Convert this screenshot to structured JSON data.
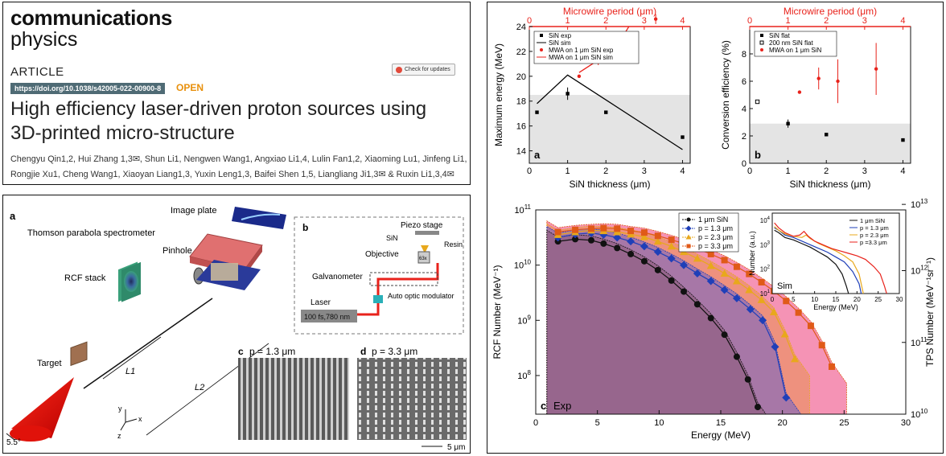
{
  "journal": {
    "name_line1": "communications",
    "name_line2": "physics"
  },
  "article_type": "ARTICLE",
  "doi": "https://doi.org/10.1038/s42005-022-00900-8",
  "open_label": "OPEN",
  "check_updates": "Check for updates",
  "title": "High efficiency laser-driven proton sources using 3D-printed micro-structure",
  "authors_line1": "Chengyu Qin1,2, Hui Zhang 1,3✉, Shun Li1, Nengwen Wang1, Angxiao Li1,4, Lulin Fan1,2, Xiaoming Lu1, Jinfeng Li1,",
  "authors_line2": "Rongjie Xu1, Cheng Wang1, Xiaoyan Liang1,3, Yuxin Leng1,3, Baifei Shen 1,5, Liangliang Ji1,3✉ & Ruxin Li1,3,4✉",
  "setup_figure": {
    "panel_a": "a",
    "panel_b": "b",
    "panel_c": "c",
    "panel_d": "d",
    "image_plate": "Image plate",
    "spectrometer": "Thomson parabola spectrometer",
    "pinhole": "Pinhole",
    "rcf_stack": "RCF stack",
    "target": "Target",
    "laser": "Laser",
    "l1": "L1",
    "l2": "L2",
    "angle": "5.5°",
    "axis_x": "x",
    "axis_y": "y",
    "axis_z": "z",
    "piezo_stage": "Piezo stage",
    "sin": "SiN",
    "resin": "Resin",
    "objective": "Objective",
    "mag": "63x",
    "galvanometer": "Galvanometer",
    "laser_box_title": "Laser",
    "laser_spec": "100 fs,780 nm",
    "aom": "Auto optic modulator",
    "sem_c": "p = 1.3 μm",
    "sem_d": "p = 3.3 μm",
    "scale": "5 μm"
  },
  "chart_data": [
    {
      "type": "scatter",
      "panel": "a",
      "xlabel": "SiN thickness (μm)",
      "ylabel": "Maximum energy (MeV)",
      "top_xlabel": "Microwire period (μm)",
      "xlim": [
        0,
        4.2
      ],
      "ylim": [
        13,
        24
      ],
      "xticks": [
        0,
        1,
        2,
        3,
        4
      ],
      "yticks": [
        14,
        16,
        18,
        20,
        22,
        24
      ],
      "top_xticks": [
        0,
        1,
        2,
        3,
        4
      ],
      "shaded_below": 18.5,
      "series": [
        {
          "name": "SiN exp",
          "kind": "points",
          "marker": "square",
          "color": "#000000",
          "x": [
            0.2,
            1.0,
            2.0,
            4.0
          ],
          "y": [
            17.1,
            18.6,
            17.1,
            15.1
          ],
          "err": [
            0,
            0.5,
            0,
            0
          ]
        },
        {
          "name": "SiN sim",
          "kind": "line",
          "color": "#000000",
          "x": [
            0.2,
            1.0,
            4.0
          ],
          "y": [
            17.8,
            20.1,
            14.1
          ]
        },
        {
          "name": "MWA on 1 μm SiN exp",
          "kind": "points",
          "marker": "circle",
          "color": "#e8221b",
          "x": [
            1.3,
            1.8,
            2.3,
            3.3
          ],
          "y": [
            20.0,
            21.6,
            22.2,
            24.6
          ],
          "err": [
            0,
            0.7,
            0.4,
            0.4
          ]
        },
        {
          "name": "MWA on 1 μm SiN sim",
          "kind": "line",
          "color": "#e8221b",
          "x": [
            1.3,
            1.8,
            2.3,
            3.3
          ],
          "y": [
            20.3,
            21.3,
            22.5,
            27.5
          ]
        }
      ]
    },
    {
      "type": "scatter",
      "panel": "b",
      "xlabel": "SiN thickness (μm)",
      "ylabel": "Conversion efficiency (%)",
      "top_xlabel": "Microwire period (μm)",
      "xlim": [
        0,
        4.2
      ],
      "ylim": [
        0,
        10
      ],
      "xticks": [
        0,
        1,
        2,
        3,
        4
      ],
      "yticks": [
        0,
        2,
        4,
        6,
        8
      ],
      "top_xticks": [
        0,
        1,
        2,
        3,
        4
      ],
      "shaded_below": 2.9,
      "series": [
        {
          "name": "SiN flat",
          "kind": "points",
          "marker": "square",
          "color": "#000000",
          "x": [
            1.0,
            2.0,
            4.0
          ],
          "y": [
            2.9,
            2.1,
            1.7
          ],
          "err": [
            0.3,
            0,
            0
          ]
        },
        {
          "name": "200 nm SiN flat",
          "kind": "points",
          "marker": "open-square",
          "color": "#000000",
          "x": [
            0.2
          ],
          "y": [
            4.5
          ],
          "err": [
            0
          ]
        },
        {
          "name": "MWA on 1 μm SiN",
          "kind": "points",
          "marker": "circle",
          "color": "#e8221b",
          "x": [
            1.3,
            1.8,
            2.3,
            3.3
          ],
          "y": [
            5.2,
            6.2,
            6.0,
            6.9
          ],
          "err": [
            0,
            0.8,
            1.6,
            1.9
          ]
        }
      ]
    },
    {
      "type": "line",
      "panel": "c",
      "annotation": "Exp",
      "xlabel": "Energy (MeV)",
      "ylabel": "RCF Number (MeV⁻¹)",
      "right_ylabel": "TPS Number (MeV⁻¹sr⁻¹)",
      "xlim": [
        0,
        30
      ],
      "ylog_range": [
        7.3,
        11
      ],
      "xticks": [
        0,
        5,
        10,
        15,
        20,
        25,
        30
      ],
      "left_ytick_labels": [
        "10^8",
        "10^9",
        "10^10",
        "10^11"
      ],
      "left_ytick_log": [
        8,
        9,
        10,
        11
      ],
      "right_ytick_labels": [
        "10^10",
        "10^11",
        "10^12",
        "10^13"
      ],
      "right_ytick_log": [
        7.3,
        8.6,
        9.9,
        11.1
      ],
      "series": [
        {
          "name": "1 μm SiN",
          "marker": "circle",
          "color": "#111111",
          "fill": "#8a5a78",
          "x": [
            1.8,
            3.2,
            4.5,
            5.5,
            6.6,
            7.7,
            8.8,
            9.9,
            11,
            12,
            13.1,
            14.2,
            15.3,
            16.3,
            17.2,
            18.0
          ],
          "y": [
            10.43,
            10.47,
            10.45,
            10.39,
            10.31,
            10.2,
            10.07,
            9.91,
            9.72,
            9.52,
            9.29,
            9.04,
            8.74,
            8.34,
            7.93,
            7.43
          ]
        },
        {
          "name": "p = 1.3 μm",
          "marker": "diamond",
          "color": "#1f3fb8",
          "fill": "#6e63c9",
          "x": [
            1.8,
            3.2,
            4.5,
            5.5,
            6.6,
            7.7,
            8.8,
            9.9,
            11,
            12,
            13.1,
            14.2,
            15.3,
            16.3,
            17.4,
            18.4,
            19.4,
            20.3
          ],
          "y": [
            10.5,
            10.56,
            10.58,
            10.55,
            10.5,
            10.43,
            10.34,
            10.24,
            10.12,
            10.0,
            9.85,
            9.71,
            9.55,
            9.4,
            9.2,
            9.0,
            8.52,
            7.6
          ]
        },
        {
          "name": "p = 2.3 μm",
          "marker": "triangle",
          "color": "#e8a81c",
          "fill": "#e89050",
          "x": [
            1.8,
            3.2,
            4.5,
            5.5,
            6.6,
            7.7,
            8.8,
            9.9,
            11,
            12,
            13.1,
            14.2,
            15.3,
            16.3,
            17.3,
            18.3,
            19.3,
            20.2,
            21
          ],
          "y": [
            10.55,
            10.6,
            10.63,
            10.62,
            10.6,
            10.56,
            10.51,
            10.43,
            10.34,
            10.24,
            10.12,
            9.99,
            9.85,
            9.71,
            9.55,
            9.37,
            9.15,
            8.75,
            8.3
          ]
        },
        {
          "name": "p = 3.3 μm",
          "marker": "square",
          "color": "#e05a18",
          "fill": "#ec3a78",
          "x": [
            1.8,
            3.2,
            4.5,
            5.5,
            6.6,
            7.7,
            8.8,
            9.9,
            11,
            12,
            13.1,
            14.2,
            15.3,
            16.3,
            17.3,
            18.3,
            19.3,
            20.3,
            21.3,
            22.3,
            23.2,
            24
          ],
          "y": [
            10.6,
            10.64,
            10.66,
            10.67,
            10.66,
            10.62,
            10.59,
            10.53,
            10.46,
            10.39,
            10.3,
            10.2,
            10.09,
            9.97,
            9.84,
            9.69,
            9.53,
            9.35,
            9.14,
            8.9,
            8.55,
            8.16
          ]
        }
      ]
    },
    {
      "type": "line",
      "panel": "c-inset",
      "annotation": "Sim",
      "xlabel": "Energy (MeV)",
      "ylabel": "Number (a.u.)",
      "xlim": [
        0,
        30
      ],
      "ylog_range": [
        1,
        4.3
      ],
      "xticks": [
        0,
        5,
        10,
        15,
        20,
        25,
        30
      ],
      "ytick_labels": [
        "10^1",
        "10^2",
        "10^3",
        "10^4"
      ],
      "ytick_log": [
        1,
        2,
        3,
        4
      ],
      "series": [
        {
          "name": "1 μm SiN",
          "color": "#111111",
          "x": [
            0.5,
            1.5,
            3,
            5,
            7,
            9,
            11,
            13,
            15,
            16.5,
            17.5,
            18
          ],
          "y": [
            3.6,
            3.5,
            3.3,
            3.2,
            3.05,
            2.9,
            2.7,
            2.5,
            2.2,
            1.8,
            1.3,
            1.0
          ]
        },
        {
          "name": "p = 1.3 μm",
          "color": "#1f3fb8",
          "x": [
            0.5,
            1.5,
            3,
            5,
            7,
            9,
            11,
            13,
            15,
            17,
            19,
            20.5,
            21
          ],
          "y": [
            3.7,
            3.6,
            3.4,
            3.3,
            3.15,
            3.0,
            2.85,
            2.7,
            2.5,
            2.3,
            1.9,
            1.4,
            1.0
          ]
        },
        {
          "name": "p = 2.3 μm",
          "color": "#e8a81c",
          "x": [
            0.5,
            1.5,
            3,
            5,
            7,
            8,
            9,
            11,
            13,
            15,
            17,
            19,
            20.5,
            21.5
          ],
          "y": [
            3.75,
            3.6,
            3.45,
            3.35,
            3.3,
            3.4,
            3.25,
            3.05,
            2.9,
            2.75,
            2.55,
            2.3,
            1.8,
            1.0
          ]
        },
        {
          "name": "p =3.3 μm",
          "color": "#e8221b",
          "x": [
            0.5,
            1.5,
            3,
            5,
            6.5,
            7.5,
            8.5,
            10,
            12,
            14,
            16,
            18,
            20,
            22,
            24,
            25.5,
            26.5,
            27
          ],
          "y": [
            3.9,
            3.7,
            3.5,
            3.35,
            3.4,
            3.55,
            3.35,
            3.15,
            3.0,
            2.85,
            2.75,
            2.65,
            2.55,
            2.4,
            2.1,
            1.8,
            1.3,
            1.0
          ]
        }
      ]
    }
  ]
}
